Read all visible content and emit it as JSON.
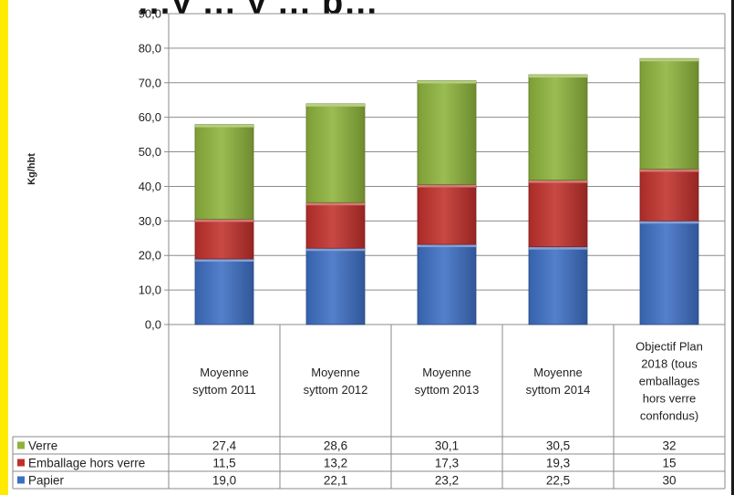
{
  "chart_data": {
    "type": "bar",
    "stacked": true,
    "title": "…y … y … p…",
    "ylabel": "Kg/hbt",
    "ylim": [
      0,
      90
    ],
    "y_ticks": [
      "0,0",
      "10,0",
      "20,0",
      "30,0",
      "40,0",
      "50,0",
      "60,0",
      "70,0",
      "80,0",
      "90,0"
    ],
    "categories": [
      [
        "Moyenne",
        "syttom 2011"
      ],
      [
        "Moyenne",
        "syttom 2012"
      ],
      [
        "Moyenne",
        "syttom 2013"
      ],
      [
        "Moyenne",
        "syttom 2014"
      ],
      [
        "Objectif Plan",
        "2018 (tous",
        "emballages",
        "hors verre",
        "confondus)"
      ]
    ],
    "series": [
      {
        "name": "Verre",
        "color": "#8db33b",
        "values": [
          27.4,
          28.6,
          30.1,
          30.5,
          32
        ],
        "labels": [
          "27,4",
          "28,6",
          "30,1",
          "30,5",
          "32"
        ]
      },
      {
        "name": "Emballage hors verre",
        "color": "#c0302b",
        "values": [
          11.5,
          13.2,
          17.3,
          19.3,
          15
        ],
        "labels": [
          "11,5",
          "13,2",
          "17,3",
          "19,3",
          "15"
        ]
      },
      {
        "name": "Papier",
        "color": "#3d6fc4",
        "values": [
          19.0,
          22.1,
          23.2,
          22.5,
          30
        ],
        "labels": [
          "19,0",
          "22,1",
          "23,2",
          "22,5",
          "30"
        ]
      }
    ],
    "stack_order_bottom_to_top": [
      "Papier",
      "Emballage hors verre",
      "Verre"
    ],
    "grid": true,
    "legend": "data-table-left"
  }
}
